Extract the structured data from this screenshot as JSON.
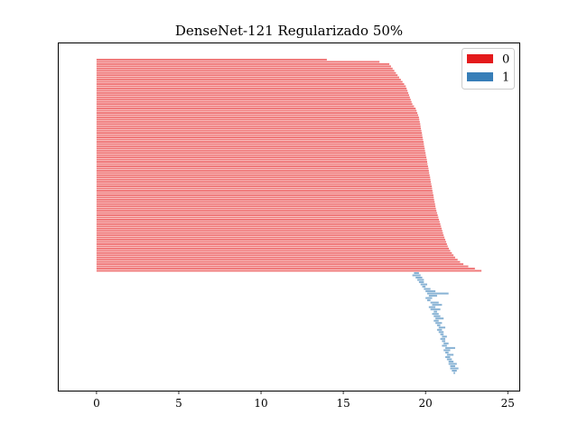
{
  "chart_data": {
    "type": "bar",
    "orientation": "horizontal",
    "title": "DenseNet-121 Regularizado 50%",
    "xlabel": "",
    "ylabel": "",
    "xlim": [
      -2.3,
      25.7
    ],
    "xticks": [
      0,
      5,
      10,
      15,
      20,
      25
    ],
    "grid": false,
    "legend": {
      "placement": "top-right",
      "entries": [
        {
          "label": "0",
          "color": "#e41a1c"
        },
        {
          "label": "1",
          "color": "#377eb8"
        }
      ]
    },
    "series": [
      {
        "name": "0",
        "color": "#e41a1c",
        "start": 0,
        "values": [
          14.0,
          17.2,
          17.8,
          17.9,
          18.0,
          18.1,
          18.2,
          18.3,
          18.4,
          18.5,
          18.6,
          18.7,
          18.8,
          18.85,
          18.9,
          18.95,
          19.0,
          19.05,
          19.1,
          19.15,
          19.2,
          19.3,
          19.4,
          19.45,
          19.5,
          19.55,
          19.6,
          19.62,
          19.65,
          19.68,
          19.7,
          19.72,
          19.75,
          19.78,
          19.8,
          19.82,
          19.85,
          19.88,
          19.9,
          19.92,
          19.95,
          19.97,
          20.0,
          20.02,
          20.05,
          20.08,
          20.1,
          20.12,
          20.15,
          20.18,
          20.2,
          20.22,
          20.25,
          20.28,
          20.3,
          20.32,
          20.35,
          20.38,
          20.4,
          20.42,
          20.45,
          20.48,
          20.5,
          20.52,
          20.55,
          20.58,
          20.6,
          20.63,
          20.66,
          20.7,
          20.74,
          20.78,
          20.82,
          20.86,
          20.9,
          20.94,
          20.98,
          21.02,
          21.06,
          21.1,
          21.15,
          21.2,
          21.25,
          21.3,
          21.35,
          21.42,
          21.5,
          21.6,
          21.7,
          21.8,
          21.95,
          22.1,
          22.3,
          22.6,
          23.0,
          23.4
        ]
      },
      {
        "name": "1",
        "color": "#377eb8",
        "segments": [
          [
            19.3,
            19.6
          ],
          [
            19.2,
            19.7
          ],
          [
            19.4,
            19.8
          ],
          [
            19.5,
            19.9
          ],
          [
            19.6,
            19.9
          ],
          [
            19.7,
            20.1
          ],
          [
            19.8,
            20.0
          ],
          [
            19.9,
            20.3
          ],
          [
            20.0,
            20.6
          ],
          [
            20.1,
            21.4
          ],
          [
            20.2,
            20.7
          ],
          [
            20.0,
            20.4
          ],
          [
            20.1,
            20.3
          ],
          [
            20.3,
            20.8
          ],
          [
            20.4,
            21.0
          ],
          [
            20.2,
            20.6
          ],
          [
            20.3,
            20.9
          ],
          [
            20.5,
            20.7
          ],
          [
            20.4,
            20.8
          ],
          [
            20.5,
            20.9
          ],
          [
            20.6,
            21.1
          ],
          [
            20.5,
            20.8
          ],
          [
            20.6,
            21.0
          ],
          [
            20.7,
            20.9
          ],
          [
            20.8,
            21.2
          ],
          [
            20.7,
            21.0
          ],
          [
            20.8,
            21.1
          ],
          [
            20.9,
            21.1
          ],
          [
            21.0,
            21.3
          ],
          [
            20.9,
            21.2
          ],
          [
            21.0,
            21.2
          ],
          [
            21.1,
            21.4
          ],
          [
            21.0,
            21.3
          ],
          [
            21.2,
            21.8
          ],
          [
            21.1,
            21.5
          ],
          [
            21.2,
            21.4
          ],
          [
            21.3,
            21.7
          ],
          [
            21.2,
            21.5
          ],
          [
            21.3,
            21.6
          ],
          [
            21.4,
            21.7
          ],
          [
            21.4,
            21.9
          ],
          [
            21.5,
            21.8
          ],
          [
            21.5,
            22.0
          ],
          [
            21.6,
            21.9
          ],
          [
            21.7,
            21.8
          ]
        ]
      }
    ]
  }
}
